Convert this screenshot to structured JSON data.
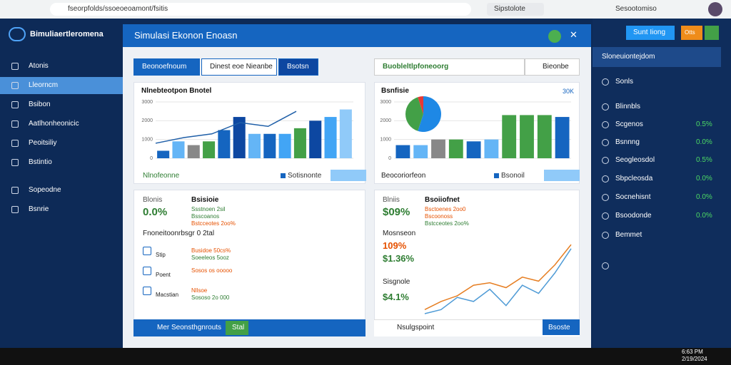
{
  "browser": {
    "url": "fseorpfolds/ssoeoeoamont/fsitis",
    "search": "Sipstolote",
    "profile": "Sesootomiso"
  },
  "sidebar": {
    "brand": "Bimuliaertleromena",
    "items": [
      "Atonis",
      "Lleorncm",
      "Bsibon",
      "Aatlhonheonicic",
      "Peoitsiliy",
      "Bstintio",
      "Sopeodne",
      "Bsnrie"
    ],
    "active": 1
  },
  "modal": {
    "title": "Simulasi Ekonon Enoasn",
    "tabs": [
      "Beonoefnoum",
      "Dinest eoe Nieanbe",
      "Bsotsn"
    ],
    "dropdown": "Buobleltlpfoneoorg",
    "button": "Bieonbe"
  },
  "chart_data": [
    {
      "type": "bar",
      "title": "Nlnebteotpon Bnotel",
      "ylim": [
        0,
        3000
      ],
      "yticks": [
        0,
        1000,
        2000,
        3000
      ],
      "grid": true,
      "values": [
        400,
        900,
        700,
        900,
        1500,
        2200,
        1300,
        1300,
        1300,
        1600,
        2000,
        2200,
        2600
      ],
      "colors": [
        "#1565c0",
        "#64b5f6",
        "#888888",
        "#43a047",
        "#1565c0",
        "#0d47a1",
        "#64b5f6",
        "#1565c0",
        "#42a5f5",
        "#43a047",
        "#0d47a1",
        "#42a5f5",
        "#90caf9"
      ],
      "line": {
        "color": "#1f5fa8",
        "values": [
          800,
          1100,
          1300,
          1900,
          1700,
          2500
        ]
      },
      "footer": "Nlnofeonne",
      "legend": "Sotisnonte"
    },
    {
      "type": "bar",
      "title": "Bsnfisie",
      "corner": "30K",
      "ylim": [
        0,
        3000
      ],
      "yticks": [
        0,
        1000,
        2000,
        3000
      ],
      "grid": true,
      "values": [
        700,
        700,
        1000,
        1000,
        900,
        1000,
        2300,
        2300,
        2300,
        2200
      ],
      "colors": [
        "#1565c0",
        "#64b5f6",
        "#888888",
        "#43a047",
        "#1565c0",
        "#64b5f6",
        "#43a047",
        "#43a047",
        "#43a047",
        "#1565c0"
      ],
      "pie": {
        "values": [
          55,
          40,
          5
        ],
        "colors": [
          "#1e88e5",
          "#43a047",
          "#e53935"
        ]
      },
      "footer": "Beocoriorfeon",
      "legend": "Bsonoil"
    },
    {
      "type": "line",
      "ylim": [
        0,
        100
      ],
      "series": [
        {
          "color": "#e67e22",
          "values": [
            5,
            15,
            22,
            35,
            38,
            32,
            45,
            40,
            60,
            85
          ]
        },
        {
          "color": "#4f9bd6",
          "values": [
            0,
            5,
            20,
            15,
            30,
            10,
            35,
            25,
            50,
            80
          ]
        }
      ]
    }
  ],
  "card_left": {
    "label": "Blonis",
    "value": "0.0%",
    "heading": "Bsisioie",
    "lines": [
      "Ssstnoen 2sil",
      "Bsscoanos",
      "Bstcceotes 2oo%"
    ],
    "row_title": "Fnoneitoonrbsgr 0 2tal",
    "rows": [
      {
        "label": "Stip",
        "a": "Busidoe 50cs%",
        "b": "Soeeleos 5ooz"
      },
      {
        "label": "Poent",
        "a": "Sosos os ooooo",
        "b": ""
      },
      {
        "label": "Macstian",
        "a": "Nllsoe",
        "b": "Sososo 2o 000"
      }
    ],
    "footer": "Mer Seonsthgnrouts",
    "button": "Stal"
  },
  "card_right": {
    "label": "Blniis",
    "value": "$09%",
    "heading": "Bsoiiofnet",
    "lines": [
      "Bsctoenes 2oo0",
      "Bscoonoss",
      "Bstcceotes 2oo%"
    ],
    "stats": [
      {
        "label": "Mosnseon",
        "value": "109%"
      },
      {
        "label": "",
        "value": "$1.36%"
      },
      {
        "label": "Sisgnole",
        "value": "$4.1%"
      }
    ],
    "footer": "Nsulgspoint",
    "button": "Bsoste"
  },
  "right_panel": {
    "buttons": [
      "Sunt Iiong",
      "Otts"
    ],
    "header": "Sloneuiontejdom",
    "items": [
      {
        "name": "Sonls",
        "value": null
      },
      {
        "name": "Blinnbls",
        "value": null
      },
      {
        "name": "Scgenos",
        "value": "0.5%"
      },
      {
        "name": "Bsnnng",
        "value": "0.0%"
      },
      {
        "name": "Seogleosdol",
        "value": "0.5%"
      },
      {
        "name": "Sbpcleosda",
        "value": "0.0%"
      },
      {
        "name": "Socnehisnt",
        "value": "0.0%"
      },
      {
        "name": "Bsoodonde",
        "value": "0.0%"
      },
      {
        "name": "Bemmet",
        "value": null
      }
    ]
  },
  "taskbar": {
    "time": "6:63 PM",
    "date": "2/19/2024"
  }
}
